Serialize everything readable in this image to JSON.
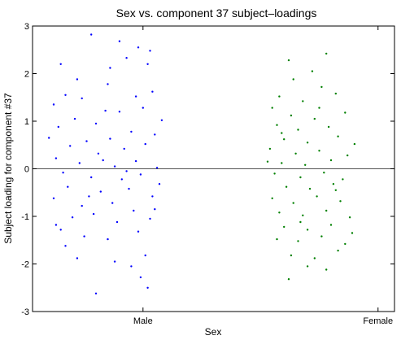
{
  "chart_data": {
    "type": "scatter",
    "title": "Sex vs. component 37 subject–loadings",
    "xlabel": "Sex",
    "ylabel": "Subject loading for component #37",
    "categories": [
      "Male",
      "Female"
    ],
    "ylim": [
      -3,
      3
    ],
    "yticks": [
      -3,
      -2,
      -1,
      0,
      1,
      2,
      3
    ],
    "zero_line": true,
    "grid": false,
    "series": [
      {
        "category": "Male",
        "color": "#0000ff",
        "points": [
          [
            0.78,
            2.82
          ],
          [
            0.9,
            2.68
          ],
          [
            0.93,
            2.33
          ],
          [
            0.98,
            2.55
          ],
          [
            1.03,
            2.48
          ],
          [
            1.02,
            2.2
          ],
          [
            0.86,
            2.12
          ],
          [
            0.65,
            2.2
          ],
          [
            0.72,
            1.88
          ],
          [
            0.85,
            1.78
          ],
          [
            0.67,
            1.55
          ],
          [
            0.74,
            1.48
          ],
          [
            0.84,
            1.22
          ],
          [
            0.97,
            1.52
          ],
          [
            1.04,
            1.62
          ],
          [
            0.62,
            1.35
          ],
          [
            0.71,
            1.05
          ],
          [
            0.8,
            0.95
          ],
          [
            0.9,
            1.2
          ],
          [
            1.0,
            1.28
          ],
          [
            0.64,
            0.88
          ],
          [
            0.76,
            0.58
          ],
          [
            0.86,
            0.63
          ],
          [
            0.95,
            0.78
          ],
          [
            1.05,
            0.72
          ],
          [
            0.69,
            0.48
          ],
          [
            0.81,
            0.32
          ],
          [
            0.92,
            0.42
          ],
          [
            1.01,
            0.52
          ],
          [
            0.63,
            0.22
          ],
          [
            0.73,
            0.12
          ],
          [
            0.88,
            0.05
          ],
          [
            0.97,
            0.16
          ],
          [
            1.06,
            0.02
          ],
          [
            0.66,
            -0.08
          ],
          [
            0.78,
            -0.18
          ],
          [
            0.91,
            -0.22
          ],
          [
            0.99,
            -0.12
          ],
          [
            0.68,
            -0.38
          ],
          [
            0.82,
            -0.48
          ],
          [
            0.94,
            -0.42
          ],
          [
            1.04,
            -0.58
          ],
          [
            0.62,
            -0.62
          ],
          [
            0.74,
            -0.78
          ],
          [
            0.87,
            -0.72
          ],
          [
            0.96,
            -0.88
          ],
          [
            0.7,
            -1.02
          ],
          [
            0.79,
            -0.95
          ],
          [
            0.89,
            -1.12
          ],
          [
            1.03,
            -1.05
          ],
          [
            0.65,
            -1.28
          ],
          [
            0.75,
            -1.42
          ],
          [
            0.85,
            -1.48
          ],
          [
            0.98,
            -1.32
          ],
          [
            0.67,
            -1.62
          ],
          [
            0.72,
            -1.88
          ],
          [
            0.88,
            -1.95
          ],
          [
            1.01,
            -1.82
          ],
          [
            0.95,
            -2.05
          ],
          [
            0.99,
            -2.28
          ],
          [
            1.02,
            -2.5
          ],
          [
            0.8,
            -2.62
          ],
          [
            0.63,
            -1.18
          ],
          [
            1.07,
            -0.32
          ],
          [
            0.6,
            0.65
          ],
          [
            1.08,
            1.02
          ],
          [
            0.83,
            0.18
          ],
          [
            0.77,
            -0.58
          ],
          [
            0.93,
            -0.05
          ],
          [
            1.05,
            -0.85
          ]
        ]
      },
      {
        "category": "Female",
        "color": "#008000",
        "points": [
          [
            1.62,
            2.28
          ],
          [
            1.78,
            2.42
          ],
          [
            1.72,
            2.05
          ],
          [
            1.64,
            1.88
          ],
          [
            1.76,
            1.72
          ],
          [
            1.58,
            1.52
          ],
          [
            1.68,
            1.42
          ],
          [
            1.82,
            1.58
          ],
          [
            1.55,
            1.28
          ],
          [
            1.63,
            1.12
          ],
          [
            1.73,
            1.05
          ],
          [
            1.86,
            1.18
          ],
          [
            1.57,
            0.92
          ],
          [
            1.66,
            0.82
          ],
          [
            1.79,
            0.88
          ],
          [
            1.6,
            0.62
          ],
          [
            1.7,
            0.55
          ],
          [
            1.83,
            0.68
          ],
          [
            1.54,
            0.42
          ],
          [
            1.65,
            0.32
          ],
          [
            1.75,
            0.38
          ],
          [
            1.87,
            0.28
          ],
          [
            1.59,
            0.12
          ],
          [
            1.69,
            0.08
          ],
          [
            1.8,
            0.18
          ],
          [
            1.56,
            -0.1
          ],
          [
            1.67,
            -0.18
          ],
          [
            1.77,
            -0.08
          ],
          [
            1.85,
            -0.22
          ],
          [
            1.61,
            -0.38
          ],
          [
            1.71,
            -0.42
          ],
          [
            1.81,
            -0.32
          ],
          [
            1.55,
            -0.62
          ],
          [
            1.64,
            -0.72
          ],
          [
            1.74,
            -0.58
          ],
          [
            1.84,
            -0.68
          ],
          [
            1.58,
            -0.92
          ],
          [
            1.68,
            -0.98
          ],
          [
            1.78,
            -0.88
          ],
          [
            1.88,
            -1.02
          ],
          [
            1.6,
            -1.22
          ],
          [
            1.7,
            -1.28
          ],
          [
            1.8,
            -1.18
          ],
          [
            1.57,
            -1.48
          ],
          [
            1.66,
            -1.52
          ],
          [
            1.76,
            -1.42
          ],
          [
            1.86,
            -1.58
          ],
          [
            1.63,
            -1.82
          ],
          [
            1.73,
            -1.88
          ],
          [
            1.83,
            -1.72
          ],
          [
            1.7,
            -2.05
          ],
          [
            1.78,
            -2.12
          ],
          [
            1.62,
            -2.32
          ],
          [
            1.89,
            -1.35
          ],
          [
            1.53,
            0.15
          ],
          [
            1.9,
            0.52
          ],
          [
            1.75,
            1.28
          ],
          [
            1.67,
            -1.12
          ],
          [
            1.82,
            -0.45
          ],
          [
            1.59,
            0.75
          ]
        ]
      }
    ]
  }
}
